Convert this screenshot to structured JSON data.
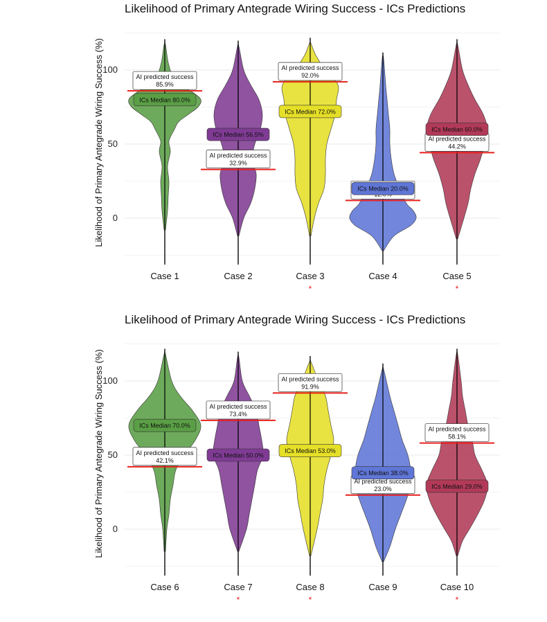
{
  "chart_data": [
    {
      "type": "violin",
      "title": "Likelihood of Primary Antegrade Wiring Success - ICs Predictions",
      "ylabel": "Likelihood of Primary Antegrade Wiring Success (%)",
      "xlabel": "",
      "ylim": [
        -25,
        125
      ],
      "yticks": [
        "0",
        "50",
        "100"
      ],
      "grid": true,
      "ai_label": "AI predicted success",
      "ics_label_prefix": "ICs Median",
      "cases": [
        {
          "name": "Case 1",
          "color": "#5a9e45",
          "median": 80.0,
          "median_label": "ICs Median 80.0%",
          "ai": 85.9,
          "ai_value": "85.9%",
          "significant": false,
          "range": [
            -8,
            117
          ],
          "density": [
            [
              -8,
              1
            ],
            [
              5,
              4
            ],
            [
              15,
              5
            ],
            [
              25,
              6
            ],
            [
              35,
              4
            ],
            [
              45,
              8
            ],
            [
              52,
              6
            ],
            [
              60,
              14
            ],
            [
              65,
              20
            ],
            [
              70,
              34
            ],
            [
              75,
              48
            ],
            [
              80,
              52
            ],
            [
              85,
              40
            ],
            [
              90,
              22
            ],
            [
              95,
              12
            ],
            [
              105,
              5
            ],
            [
              117,
              1
            ]
          ]
        },
        {
          "name": "Case 2",
          "color": "#7f3b93",
          "median": 56.5,
          "median_label": "ICs Median 56.5%",
          "ai": 32.9,
          "ai_value": "32.9%",
          "significant": false,
          "range": [
            -12,
            116
          ],
          "density": [
            [
              -12,
              1
            ],
            [
              0,
              8
            ],
            [
              10,
              18
            ],
            [
              20,
              24
            ],
            [
              30,
              26
            ],
            [
              40,
              20
            ],
            [
              50,
              24
            ],
            [
              60,
              32
            ],
            [
              70,
              35
            ],
            [
              80,
              30
            ],
            [
              90,
              18
            ],
            [
              100,
              8
            ],
            [
              116,
              1
            ]
          ]
        },
        {
          "name": "Case 3",
          "color": "#e5df27",
          "median": 72.0,
          "median_label": "ICs Median 72.0%",
          "ai": 92.0,
          "ai_value": "92.0%",
          "significant": true,
          "range": [
            -12,
            118
          ],
          "density": [
            [
              -12,
              1
            ],
            [
              0,
              6
            ],
            [
              10,
              12
            ],
            [
              20,
              20
            ],
            [
              30,
              22
            ],
            [
              40,
              22
            ],
            [
              50,
              24
            ],
            [
              60,
              30
            ],
            [
              70,
              36
            ],
            [
              80,
              38
            ],
            [
              90,
              40
            ],
            [
              100,
              22
            ],
            [
              110,
              8
            ],
            [
              118,
              1
            ]
          ]
        },
        {
          "name": "Case 4",
          "color": "#5f76d6",
          "median": 20.0,
          "median_label": "ICs Median 20.0%",
          "ai": 12.0,
          "ai_value": "12.0%",
          "significant": false,
          "range": [
            -22,
            108
          ],
          "density": [
            [
              -22,
              1
            ],
            [
              -12,
              16
            ],
            [
              -5,
              40
            ],
            [
              0,
              48
            ],
            [
              5,
              44
            ],
            [
              10,
              34
            ],
            [
              20,
              24
            ],
            [
              30,
              16
            ],
            [
              40,
              12
            ],
            [
              50,
              10
            ],
            [
              60,
              10
            ],
            [
              70,
              8
            ],
            [
              80,
              6
            ],
            [
              90,
              4
            ],
            [
              108,
              1
            ]
          ]
        },
        {
          "name": "Case 5",
          "color": "#b23a58",
          "median": 60.0,
          "median_label": "ICs Median 60.0%",
          "ai": 44.2,
          "ai_value": "44.2%",
          "significant": true,
          "range": [
            -14,
            117
          ],
          "density": [
            [
              -14,
              1
            ],
            [
              0,
              10
            ],
            [
              10,
              16
            ],
            [
              20,
              20
            ],
            [
              30,
              26
            ],
            [
              40,
              34
            ],
            [
              50,
              40
            ],
            [
              60,
              44
            ],
            [
              70,
              38
            ],
            [
              80,
              26
            ],
            [
              90,
              16
            ],
            [
              100,
              8
            ],
            [
              117,
              1
            ]
          ]
        }
      ]
    },
    {
      "type": "violin",
      "title": "Likelihood of Primary Antegrade Wiring Success - ICs Predictions",
      "ylabel": "Likelihood of Primary Antegrade Wiring Success (%)",
      "xlabel": "",
      "ylim": [
        -25,
        125
      ],
      "yticks": [
        "0",
        "50",
        "100"
      ],
      "grid": true,
      "ai_label": "AI predicted success",
      "ics_label_prefix": "ICs Median",
      "cases": [
        {
          "name": "Case 6",
          "color": "#5a9e45",
          "median": 70.0,
          "median_label": "ICs Median 70.0%",
          "ai": 42.1,
          "ai_value": "42.1%",
          "significant": false,
          "range": [
            -15,
            118
          ],
          "density": [
            [
              -15,
              1
            ],
            [
              0,
              3
            ],
            [
              10,
              6
            ],
            [
              20,
              8
            ],
            [
              30,
              12
            ],
            [
              40,
              16
            ],
            [
              50,
              28
            ],
            [
              60,
              44
            ],
            [
              70,
              52
            ],
            [
              80,
              40
            ],
            [
              90,
              22
            ],
            [
              100,
              10
            ],
            [
              118,
              1
            ]
          ]
        },
        {
          "name": "Case 7",
          "color": "#7f3b93",
          "median": 50.0,
          "median_label": "ICs Median 50.0%",
          "ai": 73.4,
          "ai_value": "73.4%",
          "significant": true,
          "range": [
            -15,
            116
          ],
          "density": [
            [
              -15,
              1
            ],
            [
              0,
              12
            ],
            [
              10,
              16
            ],
            [
              20,
              20
            ],
            [
              30,
              24
            ],
            [
              40,
              28
            ],
            [
              50,
              36
            ],
            [
              60,
              34
            ],
            [
              70,
              30
            ],
            [
              80,
              26
            ],
            [
              90,
              16
            ],
            [
              100,
              6
            ],
            [
              116,
              1
            ]
          ]
        },
        {
          "name": "Case 8",
          "color": "#e5df27",
          "median": 53.0,
          "median_label": "ICs Median 53.0%",
          "ai": 91.9,
          "ai_value": "91.9%",
          "significant": true,
          "range": [
            -18,
            113
          ],
          "density": [
            [
              -18,
              1
            ],
            [
              0,
              10
            ],
            [
              10,
              14
            ],
            [
              20,
              18
            ],
            [
              30,
              20
            ],
            [
              40,
              24
            ],
            [
              50,
              30
            ],
            [
              60,
              34
            ],
            [
              70,
              30
            ],
            [
              80,
              26
            ],
            [
              90,
              22
            ],
            [
              100,
              12
            ],
            [
              113,
              1
            ]
          ]
        },
        {
          "name": "Case 9",
          "color": "#5f76d6",
          "median": 38.0,
          "median_label": "ICs Median 38.0%",
          "ai": 23.0,
          "ai_value": "23.0%",
          "significant": false,
          "range": [
            -22,
            108
          ],
          "density": [
            [
              -22,
              1
            ],
            [
              -12,
              10
            ],
            [
              0,
              18
            ],
            [
              10,
              26
            ],
            [
              20,
              34
            ],
            [
              30,
              40
            ],
            [
              40,
              40
            ],
            [
              50,
              36
            ],
            [
              60,
              28
            ],
            [
              70,
              22
            ],
            [
              80,
              16
            ],
            [
              90,
              10
            ],
            [
              108,
              1
            ]
          ]
        },
        {
          "name": "Case 10",
          "color": "#b23a58",
          "median": 29.0,
          "median_label": "ICs Median 29.0%",
          "ai": 58.1,
          "ai_value": "58.1%",
          "significant": true,
          "range": [
            -18,
            118
          ],
          "density": [
            [
              -18,
              1
            ],
            [
              -8,
              8
            ],
            [
              0,
              18
            ],
            [
              10,
              30
            ],
            [
              20,
              40
            ],
            [
              30,
              44
            ],
            [
              40,
              36
            ],
            [
              50,
              26
            ],
            [
              60,
              22
            ],
            [
              70,
              16
            ],
            [
              80,
              12
            ],
            [
              90,
              8
            ],
            [
              100,
              6
            ],
            [
              118,
              1
            ]
          ]
        }
      ]
    }
  ]
}
